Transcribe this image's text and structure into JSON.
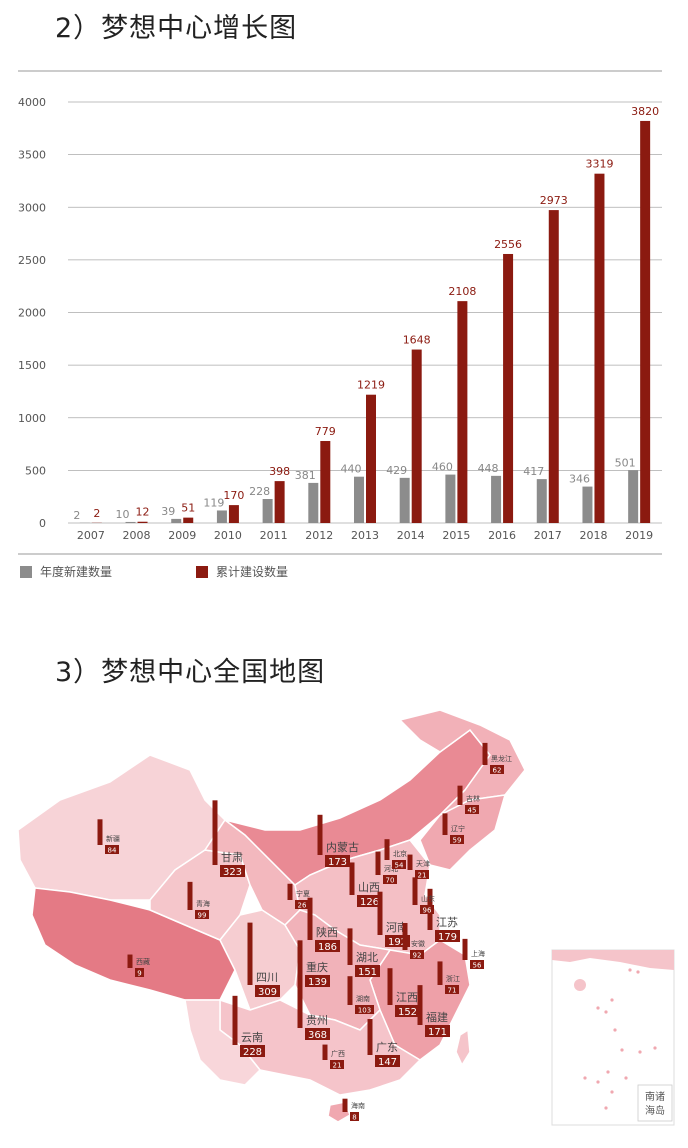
{
  "section1": {
    "title": "2）梦想中心增长图"
  },
  "section2": {
    "title": "3）梦想中心全国地图"
  },
  "colors": {
    "annual": "#8c8c8c",
    "cumulative": "#8b1a10",
    "axis": "#999999",
    "map_light": "#f5c9cd",
    "map_mid": "#ef9ea6",
    "map_dark": "#e57d88"
  },
  "chart_data": {
    "type": "bar",
    "categories": [
      "2007",
      "2008",
      "2009",
      "2010",
      "2011",
      "2012",
      "2013",
      "2014",
      "2015",
      "2016",
      "2017",
      "2018",
      "2019"
    ],
    "series": [
      {
        "name": "年度新建数量",
        "values": [
          2,
          10,
          39,
          119,
          228,
          381,
          440,
          429,
          460,
          448,
          417,
          346,
          501
        ],
        "color": "#8c8c8c"
      },
      {
        "name": "累计建设数量",
        "values": [
          2,
          12,
          51,
          170,
          398,
          779,
          1219,
          1648,
          2108,
          2556,
          2973,
          3319,
          3820
        ],
        "color": "#8b1a10"
      }
    ],
    "yticks": [
      0,
      500,
      1000,
      1500,
      2000,
      2500,
      3000,
      3500,
      4000
    ],
    "ylim": [
      0,
      4000
    ],
    "grid": true,
    "legend": "bottom-left"
  },
  "map": {
    "provinces": [
      {
        "name": "新疆",
        "value": 84
      },
      {
        "name": "西藏",
        "value": 9
      },
      {
        "name": "甘肃",
        "value": 323
      },
      {
        "name": "青海",
        "value": 99
      },
      {
        "name": "四川",
        "value": 309
      },
      {
        "name": "云南",
        "value": 228
      },
      {
        "name": "内蒙古",
        "value": 173
      },
      {
        "name": "宁夏",
        "value": 26
      },
      {
        "name": "陕西",
        "value": 186
      },
      {
        "name": "重庆",
        "value": 139
      },
      {
        "name": "贵州",
        "value": 368
      },
      {
        "name": "广西",
        "value": 21
      },
      {
        "name": "海南",
        "value": 8
      },
      {
        "name": "山西",
        "value": 126
      },
      {
        "name": "河南",
        "value": 192
      },
      {
        "name": "湖北",
        "value": 151
      },
      {
        "name": "湖南",
        "value": 103
      },
      {
        "name": "广东",
        "value": 147
      },
      {
        "name": "江西",
        "value": 152
      },
      {
        "name": "福建",
        "value": 171
      },
      {
        "name": "浙江",
        "value": 71
      },
      {
        "name": "安徽",
        "value": 92
      },
      {
        "name": "上海",
        "value": 56
      },
      {
        "name": "江苏",
        "value": 179
      },
      {
        "name": "山东",
        "value": 96
      },
      {
        "name": "河北",
        "value": 70
      },
      {
        "name": "北京",
        "value": 54
      },
      {
        "name": "天津",
        "value": 21
      },
      {
        "name": "辽宁",
        "value": 59
      },
      {
        "name": "吉林",
        "value": 45
      },
      {
        "name": "黑龙江",
        "value": 62
      }
    ],
    "inset_label": "南诸\n海岛"
  }
}
